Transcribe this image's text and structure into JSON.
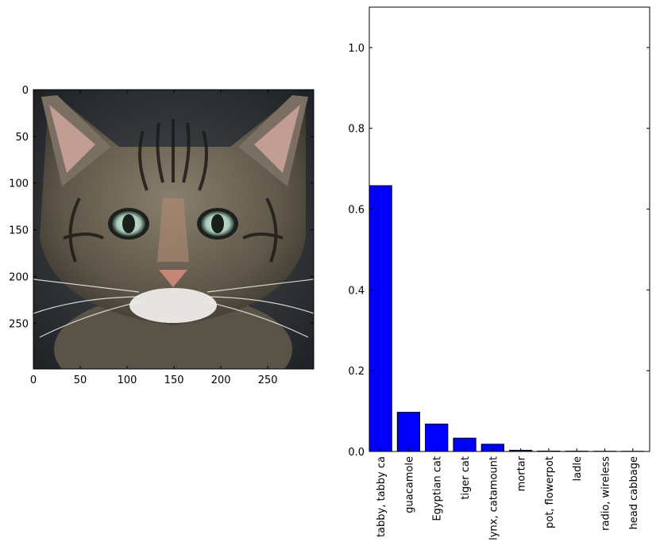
{
  "chart_data": [
    {
      "type": "image",
      "image": {
        "subject_icon": "tabby-cat-face-photo",
        "x_ticks": [
          0,
          50,
          100,
          150,
          200,
          250
        ],
        "y_ticks": [
          0,
          50,
          100,
          150,
          200,
          250
        ],
        "xlim": [
          0,
          299
        ],
        "ylim": [
          299,
          0
        ]
      }
    },
    {
      "type": "bar",
      "categories": [
        "tabby, tabby ca",
        "guacamole",
        "Egyptian cat",
        "tiger cat",
        "lynx, catamount",
        "mortar",
        "pot, flowerpot",
        "ladle",
        "radio, wireless",
        "head cabbage"
      ],
      "values": [
        0.658,
        0.097,
        0.068,
        0.033,
        0.018,
        0.003,
        0.001,
        0.0008,
        0.0006,
        0.0005
      ],
      "ylim": [
        0,
        1.1
      ],
      "y_ticks": [
        0.0,
        0.2,
        0.4,
        0.6,
        0.8,
        1.0
      ],
      "y_tick_labels": [
        "0.0",
        "0.2",
        "0.4",
        "0.6",
        "0.8",
        "1.0"
      ],
      "bar_color": "#0000ff",
      "edge_color": "#000000",
      "title": "",
      "xlabel": "",
      "ylabel": "",
      "grid": false,
      "legend": "none"
    }
  ]
}
